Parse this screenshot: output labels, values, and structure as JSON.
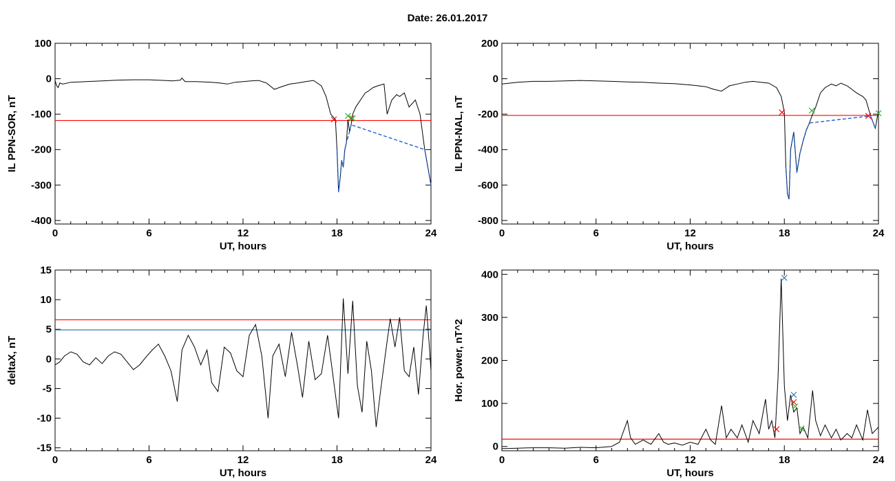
{
  "figure_title": "Date:  26.01.2017",
  "colors": {
    "trace": "#000000",
    "fill": "#1f5fcf",
    "red": "#ff0000",
    "blue": "#2f7fb8",
    "green": "#2db82d"
  },
  "chart_data": [
    {
      "type": "line",
      "xlabel": "UT, hours",
      "ylabel": "IL PPN-SOR, nT",
      "xlim": [
        0,
        24
      ],
      "ylim": [
        -410,
        100
      ],
      "xticks": [
        0,
        6,
        12,
        18,
        24
      ],
      "yticks": [
        100,
        0,
        -100,
        -200,
        -300,
        -400
      ],
      "grid": false,
      "series": [
        {
          "x": [
            0,
            0.1,
            0.2,
            0.3,
            0.5,
            1,
            2,
            3,
            4,
            5,
            6,
            7,
            7.5,
            8,
            8.1,
            8.3,
            9,
            10,
            10.5,
            11,
            11.5,
            12,
            12.5,
            13,
            13.5,
            14,
            14.5,
            15,
            15.5,
            16,
            16.5,
            17,
            17.3,
            17.6,
            17.9,
            18.0,
            18.1,
            18.2,
            18.3,
            18.4,
            18.5,
            18.6,
            18.7,
            18.8,
            18.9,
            19.0,
            19.2,
            19.5,
            19.8,
            20.0,
            20.3,
            20.6,
            21.0,
            21.2,
            21.5,
            21.8,
            22.0,
            22.3,
            22.6,
            23.0,
            23.3,
            23.6,
            23.8,
            24.0
          ],
          "y": [
            -5,
            -20,
            -25,
            -12,
            -15,
            -10,
            -8,
            -6,
            -4,
            -3,
            -3,
            -5,
            -6,
            -4,
            2,
            -8,
            -8,
            -10,
            -12,
            -15,
            -10,
            -8,
            -6,
            -5,
            -12,
            -30,
            -22,
            -15,
            -12,
            -8,
            -5,
            -20,
            -50,
            -100,
            -115,
            -200,
            -320,
            -280,
            -230,
            -250,
            -200,
            -180,
            -115,
            -150,
            -130,
            -100,
            -80,
            -60,
            -40,
            -35,
            -25,
            -20,
            -15,
            -100,
            -60,
            -45,
            -50,
            -40,
            -80,
            -60,
            -100,
            -200,
            -250,
            -300
          ]
        }
      ],
      "threshold_red": -118,
      "markers": [
        {
          "x": 17.8,
          "y": -115,
          "color": "red"
        },
        {
          "x": 18.9,
          "y": -112,
          "color": "red"
        },
        {
          "x": 18.7,
          "y": -105,
          "color": "green"
        },
        {
          "x": 19.0,
          "y": -112,
          "color": "green"
        }
      ]
    },
    {
      "type": "line",
      "xlabel": "UT, hours",
      "ylabel": "IL PPN-NAL, nT",
      "xlim": [
        0,
        24
      ],
      "ylim": [
        -820,
        200
      ],
      "xticks": [
        0,
        6,
        12,
        18,
        24
      ],
      "yticks": [
        200,
        0,
        -200,
        -400,
        -600,
        -800
      ],
      "grid": false,
      "series": [
        {
          "x": [
            0,
            0.5,
            1,
            2,
            3,
            4,
            5,
            6,
            7,
            8,
            9,
            10,
            11,
            12,
            12.5,
            13,
            13.5,
            14,
            14.5,
            15,
            15.5,
            16,
            16.5,
            17,
            17.5,
            17.8,
            18.0,
            18.1,
            18.2,
            18.3,
            18.4,
            18.6,
            18.8,
            19.0,
            19.2,
            19.4,
            19.6,
            19.8,
            20.0,
            20.3,
            20.6,
            21.0,
            21.3,
            21.6,
            22.0,
            22.3,
            22.6,
            23.0,
            23.2,
            23.5,
            23.8,
            24.0
          ],
          "y": [
            -30,
            -25,
            -20,
            -15,
            -15,
            -12,
            -10,
            -12,
            -15,
            -18,
            -20,
            -25,
            -28,
            -35,
            -40,
            -45,
            -60,
            -70,
            -40,
            -30,
            -20,
            -15,
            -20,
            -25,
            -50,
            -100,
            -190,
            -500,
            -650,
            -680,
            -400,
            -300,
            -530,
            -420,
            -350,
            -290,
            -250,
            -200,
            -160,
            -80,
            -50,
            -30,
            -40,
            -25,
            -40,
            -60,
            -80,
            -100,
            -120,
            -210,
            -280,
            -180
          ]
        }
      ],
      "threshold_red": -207,
      "markers": [
        {
          "x": 17.85,
          "y": -190,
          "color": "red"
        },
        {
          "x": 23.35,
          "y": -210,
          "color": "red"
        },
        {
          "x": 19.75,
          "y": -180,
          "color": "green"
        },
        {
          "x": 24.0,
          "y": -195,
          "color": "green"
        }
      ]
    },
    {
      "type": "line",
      "xlabel": "UT, hours",
      "ylabel": "deltaX, nT",
      "xlim": [
        0,
        24
      ],
      "ylim": [
        -15.5,
        15
      ],
      "xticks": [
        0,
        6,
        12,
        18,
        24
      ],
      "yticks": [
        15,
        10,
        5,
        0,
        -5,
        -10,
        -15
      ],
      "grid": false,
      "series": [
        {
          "x": [
            0,
            0.3,
            0.6,
            1.0,
            1.4,
            1.8,
            2.2,
            2.6,
            3.0,
            3.4,
            3.8,
            4.2,
            4.6,
            5.0,
            5.4,
            5.8,
            6.2,
            6.6,
            7.0,
            7.4,
            7.8,
            8.1,
            8.5,
            8.9,
            9.3,
            9.7,
            10.0,
            10.4,
            10.8,
            11.2,
            11.6,
            12.0,
            12.4,
            12.8,
            13.2,
            13.6,
            13.9,
            14.3,
            14.7,
            15.1,
            15.5,
            15.8,
            16.2,
            16.6,
            17.0,
            17.4,
            17.7,
            17.9,
            18.1,
            18.4,
            18.7,
            19.0,
            19.3,
            19.6,
            19.9,
            20.2,
            20.5,
            20.8,
            21.1,
            21.4,
            21.7,
            22.0,
            22.3,
            22.6,
            22.9,
            23.2,
            23.5,
            23.7,
            23.9,
            24.0
          ],
          "y": [
            -1,
            -0.5,
            0.5,
            1.2,
            0.8,
            -0.5,
            -1,
            0.2,
            -0.8,
            0.5,
            1.2,
            0.8,
            -0.5,
            -1.8,
            -1,
            0.3,
            1.5,
            2.5,
            0.5,
            -2,
            -7.2,
            1.5,
            4,
            2,
            -1,
            1.5,
            -4,
            -5.5,
            2,
            1,
            -2,
            -3,
            4,
            5.8,
            0.5,
            -10,
            0.5,
            2.5,
            -3,
            4.5,
            -1.5,
            -6.5,
            3,
            -3.5,
            -2.5,
            4,
            -2,
            -6,
            -10,
            10.2,
            -2.5,
            9.8,
            -4.5,
            -9,
            3,
            -2,
            -11.5,
            -5,
            1,
            6.8,
            2,
            7,
            -2,
            -3,
            2,
            -6,
            4,
            9,
            2,
            -2
          ]
        }
      ],
      "threshold_red": 6.6,
      "threshold_blue": 4.9,
      "markers": []
    },
    {
      "type": "line",
      "xlabel": "UT, hours",
      "ylabel": "Hor. power, nT^2",
      "xlim": [
        0,
        24
      ],
      "ylim": [
        -10,
        410
      ],
      "xticks": [
        0,
        6,
        12,
        18,
        24
      ],
      "yticks": [
        400,
        300,
        200,
        100,
        0
      ],
      "grid": false,
      "series": [
        {
          "x": [
            0,
            1,
            2,
            3,
            4,
            5,
            6,
            7,
            7.5,
            8.0,
            8.2,
            8.5,
            9.0,
            9.5,
            10.0,
            10.3,
            10.6,
            11,
            11.5,
            12,
            12.5,
            13.0,
            13.3,
            13.6,
            14.0,
            14.3,
            14.6,
            15.0,
            15.3,
            15.7,
            16.0,
            16.4,
            16.8,
            17.0,
            17.2,
            17.4,
            17.6,
            17.8,
            18.0,
            18.2,
            18.4,
            18.6,
            18.8,
            19.0,
            19.2,
            19.5,
            19.8,
            20.0,
            20.3,
            20.6,
            21.0,
            21.3,
            21.6,
            22.0,
            22.3,
            22.6,
            23.0,
            23.3,
            23.6,
            24.0
          ],
          "y": [
            -5,
            -4,
            -3,
            -3,
            -4,
            -2,
            -3,
            0,
            10,
            60,
            20,
            5,
            15,
            5,
            30,
            10,
            5,
            8,
            3,
            10,
            5,
            40,
            15,
            5,
            95,
            20,
            40,
            20,
            50,
            10,
            60,
            30,
            110,
            40,
            60,
            20,
            160,
            390,
            140,
            60,
            120,
            80,
            90,
            30,
            45,
            20,
            130,
            60,
            25,
            50,
            20,
            40,
            15,
            30,
            20,
            50,
            15,
            85,
            30,
            45
          ]
        }
      ],
      "threshold_red": 17,
      "markers": [
        {
          "x": 18.0,
          "y": 392,
          "color": "blue"
        },
        {
          "x": 18.6,
          "y": 120,
          "color": "blue"
        },
        {
          "x": 17.5,
          "y": 40,
          "color": "red"
        },
        {
          "x": 18.6,
          "y": 103,
          "color": "red"
        },
        {
          "x": 18.7,
          "y": 93,
          "color": "green"
        },
        {
          "x": 19.1,
          "y": 42,
          "color": "green"
        }
      ]
    }
  ]
}
